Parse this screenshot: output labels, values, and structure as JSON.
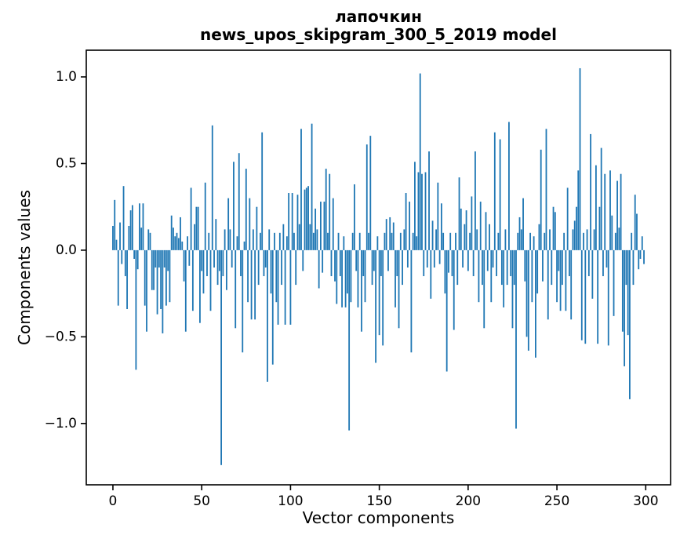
{
  "chart_data": {
    "type": "bar",
    "title": "лапочкин",
    "subtitle": "news_upos_skipgram_300_5_2019 model",
    "xlabel": "Vector components",
    "ylabel": "Components values",
    "legend": null,
    "grid": false,
    "bar_color": "#1f77b4",
    "axis_color": "#000000",
    "background_color": "#ffffff",
    "bar_width": 0.8,
    "xlim": [
      -15,
      314
    ],
    "ylim": [
      -1.354,
      1.154
    ],
    "xticks": [
      {
        "v": 0,
        "label": "0"
      },
      {
        "v": 50,
        "label": "50"
      },
      {
        "v": 100,
        "label": "100"
      },
      {
        "v": 150,
        "label": "150"
      },
      {
        "v": 200,
        "label": "200"
      },
      {
        "v": 250,
        "label": "250"
      },
      {
        "v": 300,
        "label": "300"
      }
    ],
    "yticks": [
      {
        "v": 1.0,
        "label": "1.0"
      },
      {
        "v": 0.5,
        "label": "0.5"
      },
      {
        "v": 0.0,
        "label": "0.0"
      },
      {
        "v": -0.5,
        "label": "−0.5"
      },
      {
        "v": -1.0,
        "label": "−1.0"
      }
    ],
    "n_components": 300,
    "values": [
      0.14,
      0.29,
      0.06,
      -0.32,
      0.16,
      -0.08,
      0.37,
      -0.15,
      -0.34,
      0.14,
      0.23,
      0.26,
      -0.05,
      -0.69,
      -0.11,
      0.27,
      0.13,
      0.27,
      -0.32,
      -0.47,
      0.12,
      0.1,
      -0.23,
      -0.23,
      -0.1,
      -0.37,
      -0.1,
      -0.34,
      -0.48,
      -0.1,
      -0.32,
      -0.12,
      -0.3,
      0.2,
      0.13,
      0.08,
      0.1,
      0.07,
      0.19,
      0.05,
      -0.18,
      -0.47,
      0.08,
      -0.09,
      0.36,
      -0.35,
      0.15,
      0.25,
      0.25,
      -0.42,
      -0.12,
      -0.25,
      0.39,
      -0.15,
      0.1,
      -0.35,
      0.72,
      -0.1,
      0.18,
      -0.2,
      -0.12,
      -1.24,
      -0.15,
      0.12,
      -0.23,
      0.3,
      0.12,
      -0.1,
      0.51,
      -0.45,
      0.08,
      0.56,
      -0.15,
      -0.59,
      0.05,
      0.47,
      -0.3,
      0.3,
      -0.4,
      0.12,
      -0.4,
      0.25,
      -0.2,
      0.1,
      0.68,
      -0.15,
      -0.1,
      -0.76,
      0.12,
      -0.25,
      -0.66,
      0.1,
      -0.3,
      -0.43,
      0.1,
      -0.2,
      0.15,
      -0.43,
      0.08,
      0.33,
      -0.43,
      0.33,
      0.1,
      -0.2,
      0.32,
      0.15,
      0.7,
      -0.12,
      0.35,
      0.36,
      0.37,
      0.15,
      0.73,
      0.1,
      0.24,
      0.12,
      -0.22,
      0.28,
      -0.13,
      0.28,
      0.47,
      0.1,
      0.44,
      -0.15,
      0.3,
      -0.18,
      -0.31,
      0.1,
      -0.15,
      -0.33,
      0.08,
      -0.33,
      -0.25,
      -1.04,
      -0.3,
      0.1,
      0.38,
      -0.12,
      -0.33,
      0.1,
      -0.47,
      -0.15,
      -0.3,
      0.61,
      0.1,
      0.66,
      -0.2,
      -0.12,
      -0.65,
      0.08,
      -0.49,
      -0.15,
      -0.55,
      0.1,
      0.18,
      -0.12,
      0.19,
      0.1,
      0.16,
      -0.33,
      -0.15,
      -0.45,
      0.1,
      -0.2,
      0.12,
      0.33,
      -0.1,
      0.28,
      -0.59,
      0.1,
      0.51,
      0.08,
      0.45,
      1.02,
      0.44,
      -0.15,
      0.45,
      -0.1,
      0.57,
      -0.28,
      0.17,
      -0.1,
      0.12,
      0.39,
      -0.08,
      0.27,
      0.1,
      -0.25,
      -0.7,
      -0.13,
      0.1,
      -0.15,
      -0.46,
      0.1,
      -0.2,
      0.42,
      0.24,
      -0.1,
      0.15,
      0.23,
      -0.12,
      0.1,
      0.31,
      -0.15,
      0.57,
      0.12,
      -0.3,
      0.28,
      -0.2,
      -0.45,
      0.22,
      -0.12,
      0.15,
      -0.3,
      -0.1,
      0.68,
      -0.15,
      0.1,
      0.64,
      -0.2,
      -0.33,
      0.12,
      -0.2,
      0.74,
      -0.15,
      -0.45,
      -0.2,
      -1.03,
      0.1,
      0.19,
      0.12,
      0.3,
      -0.18,
      -0.5,
      -0.58,
      0.1,
      -0.3,
      0.08,
      -0.62,
      -0.25,
      0.15,
      0.58,
      -0.18,
      0.1,
      0.7,
      -0.4,
      0.12,
      -0.2,
      0.25,
      0.22,
      -0.3,
      -0.12,
      -0.35,
      -0.2,
      0.1,
      -0.35,
      0.36,
      -0.15,
      -0.4,
      0.12,
      0.17,
      0.25,
      0.46,
      1.05,
      -0.52,
      0.1,
      -0.54,
      0.12,
      -0.15,
      0.67,
      -0.28,
      0.12,
      0.49,
      -0.54,
      0.25,
      0.59,
      -0.15,
      0.44,
      -0.1,
      -0.55,
      0.46,
      0.2,
      -0.38,
      0.1,
      0.4,
      0.13,
      0.44,
      -0.47,
      -0.67,
      -0.2,
      -0.49,
      -0.86,
      0.1,
      -0.2,
      0.32,
      0.21,
      -0.11,
      -0.05,
      0.08,
      -0.08
    ]
  }
}
